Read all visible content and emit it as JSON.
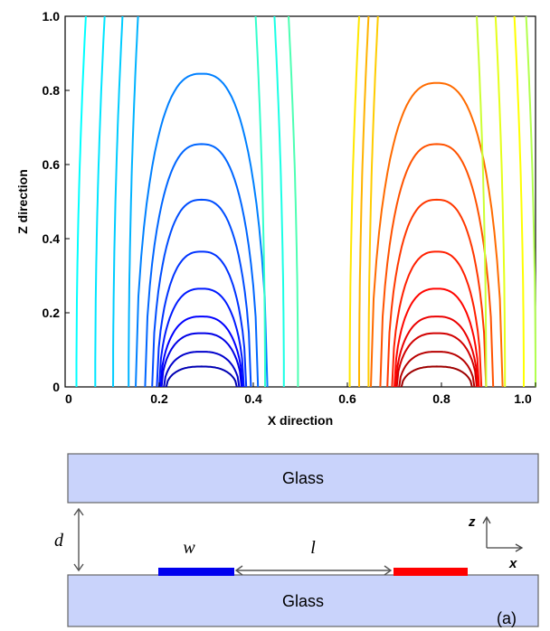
{
  "chart_data": {
    "type": "contour",
    "xlabel": "X direction",
    "ylabel": "Z direction",
    "xlim": [
      0,
      1.0
    ],
    "ylim": [
      0,
      1.0
    ],
    "x_ticks": [
      "0",
      "0.2",
      "0.4",
      "0.6",
      "0.8",
      "1.0"
    ],
    "y_ticks": [
      "0",
      "0.2",
      "0.4",
      "0.6",
      "0.8",
      "1.0"
    ],
    "electrodes": {
      "negative": {
        "x_start": 0.17,
        "x_end": 0.37
      },
      "positive": {
        "x_start": 0.67,
        "x_end": 0.87
      }
    },
    "left_family": {
      "center": 0.29,
      "arches": [
        {
          "half_width": 0.075,
          "height": 0.055
        },
        {
          "half_width": 0.08,
          "height": 0.095
        },
        {
          "half_width": 0.085,
          "height": 0.145
        },
        {
          "half_width": 0.087,
          "height": 0.19
        },
        {
          "half_width": 0.09,
          "height": 0.265
        },
        {
          "half_width": 0.095,
          "height": 0.365
        },
        {
          "half_width": 0.105,
          "height": 0.505
        },
        {
          "half_width": 0.12,
          "height": 0.655
        },
        {
          "half_width": 0.14,
          "height": 0.845
        }
      ],
      "open_lines_x": [
        0.135,
        0.102,
        0.064,
        0.024,
        0.465,
        0.425,
        0.495
      ]
    },
    "right_family": {
      "center": 0.79,
      "arches": [
        {
          "half_width": 0.075,
          "height": 0.055
        },
        {
          "half_width": 0.08,
          "height": 0.095
        },
        {
          "half_width": 0.085,
          "height": 0.145
        },
        {
          "half_width": 0.087,
          "height": 0.19
        },
        {
          "half_width": 0.09,
          "height": 0.265
        },
        {
          "half_width": 0.095,
          "height": 0.365
        },
        {
          "half_width": 0.105,
          "height": 0.505
        },
        {
          "half_width": 0.12,
          "height": 0.655
        },
        {
          "half_width": 0.14,
          "height": 0.82
        }
      ],
      "open_lines_x": [
        0.625,
        0.645,
        0.605,
        0.975,
        0.935,
        0.895,
        1.0
      ]
    },
    "colormap": "jet"
  },
  "schematic": {
    "top_plate_label": "Glass",
    "bottom_plate_label": "Glass",
    "gap_label": "d",
    "width_label": "w",
    "length_label": "l",
    "axis_z_label": "z",
    "axis_x_label": "x",
    "panel_label": "(a)",
    "plate_color": "#c9d3fb",
    "left_electrode_color": "#0000ee",
    "right_electrode_color": "#ff0000"
  }
}
